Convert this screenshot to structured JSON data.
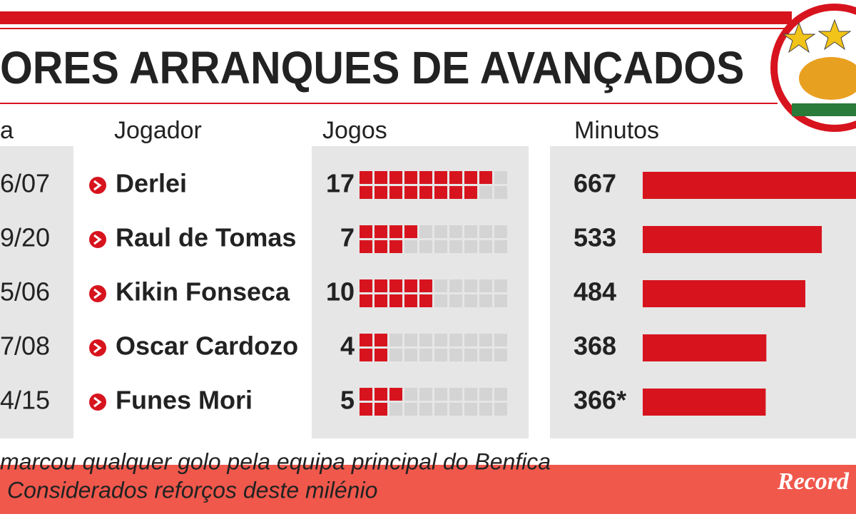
{
  "header": {
    "title": "ORES ARRANQUES DE AVANÇADOS"
  },
  "table": {
    "columns": [
      "a",
      "Jogador",
      "Jogos",
      "Minutos"
    ],
    "rows": [
      {
        "epoca": "6/07",
        "jogador": "Derlei",
        "jogos": 17,
        "minutos": 667
      },
      {
        "epoca": "9/20",
        "jogador": "Raul de Tomas",
        "jogos": 7,
        "minutos": 533
      },
      {
        "epoca": "5/06",
        "jogador": "Kikin Fonseca",
        "jogos": 10,
        "minutos": 484
      },
      {
        "epoca": "7/08",
        "jogador": "Oscar Cardozo",
        "jogos": 4,
        "minutos": 368
      },
      {
        "epoca": "4/15",
        "jogador": "Funes Mori",
        "jogos": 5,
        "minutos": 366,
        "minutos_label": "366*"
      }
    ]
  },
  "footnotes": [
    "marcou qualquer golo pela equipa principal do Benfica",
    "Considerados reforços deste milénio"
  ],
  "brand": "Record"
}
